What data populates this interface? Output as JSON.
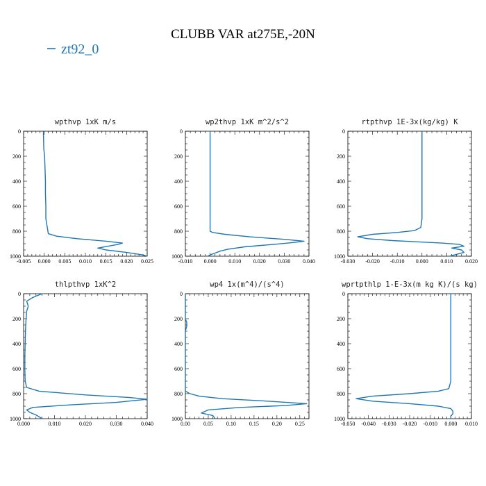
{
  "figure": {
    "title": "CLUBB VAR at275E,-20N",
    "legend_label": "zt92_0",
    "series_color": "#1f77b4"
  },
  "chart_data": [
    {
      "type": "line",
      "title": "wpthvp  1xK m/s",
      "xlim": [
        -0.005,
        0.025
      ],
      "ylim": [
        0,
        1000
      ],
      "xticks": [
        "-0.005",
        "0.000",
        "0.005",
        "0.010",
        "0.015",
        "0.020",
        "0.025"
      ],
      "yticks": [
        "0",
        "200",
        "400",
        "600",
        "800",
        "1000"
      ],
      "points": [
        [
          -0.0002,
          0
        ],
        [
          -0.0001,
          140
        ],
        [
          0.0001,
          200
        ],
        [
          0.0002,
          300
        ],
        [
          0.0003,
          400
        ],
        [
          0.0003,
          500
        ],
        [
          0.0004,
          600
        ],
        [
          0.0004,
          700
        ],
        [
          0.0008,
          780
        ],
        [
          0.001,
          820
        ],
        [
          0.003,
          840
        ],
        [
          0.008,
          860
        ],
        [
          0.015,
          880
        ],
        [
          0.019,
          895
        ],
        [
          0.018,
          905
        ],
        [
          0.013,
          935
        ],
        [
          0.015,
          950
        ],
        [
          0.02,
          970
        ],
        [
          0.024,
          990
        ],
        [
          0.025,
          1000
        ]
      ]
    },
    {
      "type": "line",
      "title": "wp2thvp  1xK m^2/s^2",
      "xlim": [
        -0.01,
        0.04
      ],
      "ylim": [
        0,
        1000
      ],
      "xticks": [
        "-0.010",
        "0.000",
        "0.010",
        "0.020",
        "0.030",
        "0.040"
      ],
      "yticks": [
        "0",
        "200",
        "400",
        "600",
        "800",
        "1000"
      ],
      "points": [
        [
          0.0,
          0
        ],
        [
          0.0,
          200
        ],
        [
          0.0,
          400
        ],
        [
          0.0,
          600
        ],
        [
          0.0,
          700
        ],
        [
          0.0,
          800
        ],
        [
          0.001,
          810
        ],
        [
          0.006,
          825
        ],
        [
          0.016,
          845
        ],
        [
          0.03,
          865
        ],
        [
          0.038,
          880
        ],
        [
          0.034,
          890
        ],
        [
          0.026,
          905
        ],
        [
          0.014,
          925
        ],
        [
          0.007,
          945
        ],
        [
          0.004,
          960
        ],
        [
          0.002,
          975
        ],
        [
          0.0,
          990
        ],
        [
          -0.001,
          1000
        ]
      ]
    },
    {
      "type": "line",
      "title": "rtpthvp  1E-3x(kg/kg) K",
      "xlim": [
        -0.03,
        0.02
      ],
      "ylim": [
        0,
        1000
      ],
      "xticks": [
        "-0.030",
        "-0.020",
        "-0.010",
        "0.000",
        "0.010",
        "0.020"
      ],
      "yticks": [
        "0",
        "200",
        "400",
        "600",
        "800",
        "1000"
      ],
      "points": [
        [
          0.0,
          0
        ],
        [
          0.0,
          200
        ],
        [
          0.0,
          400
        ],
        [
          0.0,
          600
        ],
        [
          0.0,
          700
        ],
        [
          -0.0005,
          770
        ],
        [
          -0.003,
          795
        ],
        [
          -0.01,
          810
        ],
        [
          -0.02,
          825
        ],
        [
          -0.026,
          845
        ],
        [
          -0.022,
          860
        ],
        [
          -0.012,
          875
        ],
        [
          -0.002,
          885
        ],
        [
          0.008,
          895
        ],
        [
          0.015,
          905
        ],
        [
          0.017,
          920
        ],
        [
          0.012,
          935
        ],
        [
          0.016,
          950
        ],
        [
          0.017,
          970
        ],
        [
          0.014,
          985
        ],
        [
          0.011,
          1000
        ]
      ]
    },
    {
      "type": "line",
      "title": "thlpthvp  1xK^2",
      "xlim": [
        0.0,
        0.04
      ],
      "ylim": [
        0,
        1000
      ],
      "xticks": [
        "0.000",
        "0.010",
        "0.020",
        "0.030",
        "0.040"
      ],
      "yticks": [
        "0",
        "200",
        "400",
        "600",
        "800",
        "1000"
      ],
      "points": [
        [
          0.006,
          0
        ],
        [
          0.003,
          30
        ],
        [
          0.001,
          60
        ],
        [
          0.0015,
          100
        ],
        [
          0.001,
          140
        ],
        [
          0.0008,
          200
        ],
        [
          0.0006,
          300
        ],
        [
          0.0005,
          400
        ],
        [
          0.0004,
          500
        ],
        [
          0.0004,
          600
        ],
        [
          0.0005,
          700
        ],
        [
          0.001,
          750
        ],
        [
          0.005,
          780
        ],
        [
          0.02,
          810
        ],
        [
          0.034,
          830
        ],
        [
          0.04,
          845
        ],
        [
          0.03,
          870
        ],
        [
          0.015,
          890
        ],
        [
          0.003,
          910
        ],
        [
          0.001,
          930
        ],
        [
          0.002,
          950
        ],
        [
          0.004,
          970
        ],
        [
          0.006,
          1000
        ]
      ]
    },
    {
      "type": "line",
      "title": "wp4  1x(m^4)/(s^4)",
      "xlim": [
        0.0,
        0.27
      ],
      "ylim": [
        0,
        1000
      ],
      "xticks": [
        "0.00",
        "0.05",
        "0.10",
        "0.15",
        "0.20",
        "0.25"
      ],
      "yticks": [
        "0",
        "200",
        "400",
        "600",
        "800",
        "1000"
      ],
      "points": [
        [
          0.0,
          0
        ],
        [
          0.0,
          200
        ],
        [
          0.003,
          230
        ],
        [
          0.003,
          260
        ],
        [
          0.0,
          300
        ],
        [
          0.0,
          500
        ],
        [
          0.0,
          700
        ],
        [
          0.0,
          780
        ],
        [
          0.01,
          800
        ],
        [
          0.03,
          820
        ],
        [
          0.08,
          840
        ],
        [
          0.18,
          860
        ],
        [
          0.265,
          880
        ],
        [
          0.22,
          895
        ],
        [
          0.12,
          910
        ],
        [
          0.05,
          930
        ],
        [
          0.035,
          955
        ],
        [
          0.06,
          975
        ],
        [
          0.065,
          1000
        ]
      ]
    },
    {
      "type": "line",
      "title": "wprtpthlp  1-E-3x(m kg K)/(s kg)",
      "xlim": [
        -0.05,
        0.01
      ],
      "ylim": [
        0,
        1000
      ],
      "xticks": [
        "-0.050",
        "-0.040",
        "-0.030",
        "-0.020",
        "-0.010",
        "0.000",
        "0.010"
      ],
      "yticks": [
        "0",
        "200",
        "400",
        "600",
        "800",
        "1000"
      ],
      "points": [
        [
          0.0,
          0
        ],
        [
          0.0,
          200
        ],
        [
          0.0,
          400
        ],
        [
          0.0,
          600
        ],
        [
          0.0,
          700
        ],
        [
          -0.001,
          760
        ],
        [
          -0.006,
          780
        ],
        [
          -0.02,
          800
        ],
        [
          -0.038,
          820
        ],
        [
          -0.046,
          840
        ],
        [
          -0.038,
          860
        ],
        [
          -0.02,
          880
        ],
        [
          -0.006,
          900
        ],
        [
          0.0,
          920
        ],
        [
          0.001,
          940
        ],
        [
          0.001,
          960
        ],
        [
          0.0,
          980
        ],
        [
          0.0,
          1000
        ]
      ]
    }
  ]
}
